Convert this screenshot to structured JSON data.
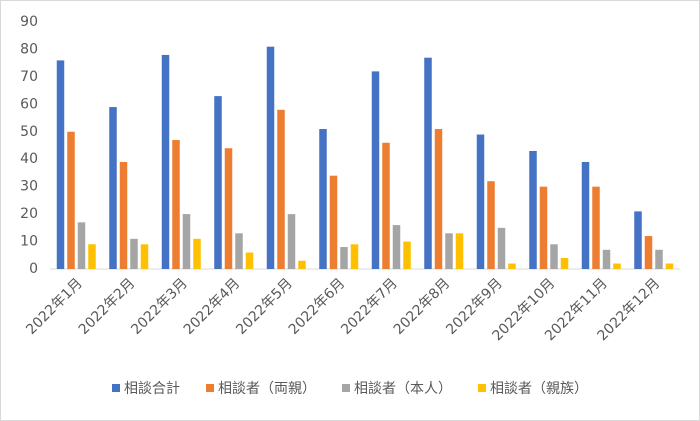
{
  "chart_data": {
    "type": "bar",
    "categories": [
      "2022年1月",
      "2022年2月",
      "2022年3月",
      "2022年4月",
      "2022年5月",
      "2022年6月",
      "2022年7月",
      "2022年8月",
      "2022年9月",
      "2022年10月",
      "2022年11月",
      "2022年12月"
    ],
    "series": [
      {
        "name": "相談合計",
        "color": "#4472c4",
        "values": [
          76,
          59,
          78,
          63,
          81,
          51,
          72,
          77,
          49,
          43,
          39,
          21
        ]
      },
      {
        "name": "相談者（両親）",
        "color": "#ed7d31",
        "values": [
          50,
          39,
          47,
          44,
          58,
          34,
          46,
          51,
          32,
          30,
          30,
          12
        ]
      },
      {
        "name": "相談者（本人）",
        "color": "#a5a5a5",
        "values": [
          17,
          11,
          20,
          13,
          20,
          8,
          16,
          13,
          15,
          9,
          7,
          7
        ]
      },
      {
        "name": "相談者（親族）",
        "color": "#ffc000",
        "values": [
          9,
          9,
          11,
          6,
          3,
          9,
          10,
          13,
          2,
          4,
          2,
          2
        ]
      }
    ],
    "ylim": [
      0,
      90
    ],
    "yticks": [
      0,
      10,
      20,
      30,
      40,
      50,
      60,
      70,
      80,
      90
    ],
    "grid": false,
    "legend": "bottom"
  }
}
